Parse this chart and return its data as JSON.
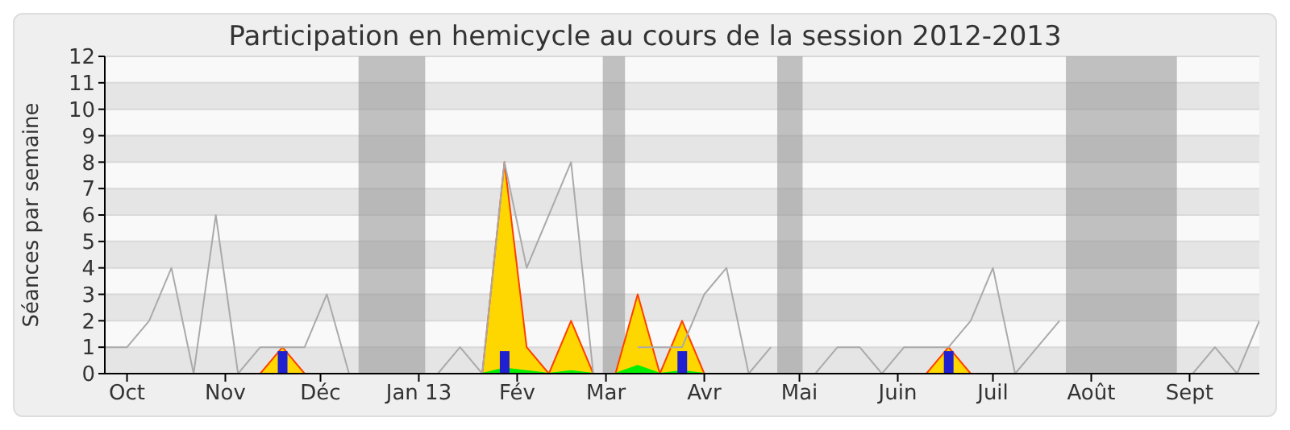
{
  "chart_data": {
    "type": "line",
    "title": "Participation en hemicycle au cours de la session 2012-2013",
    "ylabel": "Séances par semaine",
    "x": [
      "2012-09-24",
      "2012-10-01",
      "2012-10-08",
      "2012-10-15",
      "2012-10-22",
      "2012-10-29",
      "2012-11-05",
      "2012-11-12",
      "2012-11-19",
      "2012-11-26",
      "2012-12-03",
      "2012-12-10",
      "2012-12-17",
      "2012-12-24",
      "2012-12-31",
      "2013-01-07",
      "2013-01-14",
      "2013-01-21",
      "2013-01-28",
      "2013-02-04",
      "2013-02-11",
      "2013-02-18",
      "2013-02-25",
      "2013-03-04",
      "2013-03-11",
      "2013-03-18",
      "2013-03-25",
      "2013-04-01",
      "2013-04-08",
      "2013-04-15",
      "2013-04-22",
      "2013-04-29",
      "2013-05-06",
      "2013-05-13",
      "2013-05-20",
      "2013-05-27",
      "2013-06-03",
      "2013-06-10",
      "2013-06-17",
      "2013-06-24",
      "2013-07-01",
      "2013-07-08",
      "2013-07-15",
      "2013-07-22",
      "2013-07-29",
      "2013-08-05",
      "2013-08-12",
      "2013-08-19",
      "2013-08-26",
      "2013-09-02",
      "2013-09-09",
      "2013-09-16",
      "2013-09-23"
    ],
    "series": [
      {
        "color": "#aaaaaa",
        "values": [
          1,
          1,
          2,
          4,
          0,
          6,
          0,
          1,
          1,
          1,
          3,
          0,
          null,
          null,
          null,
          0,
          1,
          0,
          8,
          4,
          6,
          8,
          0,
          null,
          1,
          1,
          1,
          3,
          4,
          0,
          1,
          null,
          0,
          1,
          1,
          0,
          1,
          1,
          1,
          2,
          4,
          0,
          1,
          2,
          null,
          null,
          null,
          null,
          null,
          0,
          1,
          0,
          2
        ]
      },
      {
        "type": "area",
        "color": "#ffd700",
        "values": [
          0,
          0,
          0,
          0,
          0,
          0,
          0,
          0,
          1,
          0,
          0,
          0,
          0,
          0,
          0,
          0,
          0,
          0,
          8,
          1,
          0,
          2,
          0,
          0,
          3,
          0,
          2,
          0,
          0,
          0,
          0,
          0,
          0,
          0,
          0,
          0,
          0,
          0,
          1,
          0,
          0,
          0,
          0,
          0,
          0,
          0,
          0,
          0,
          0,
          0,
          0,
          0,
          0
        ]
      },
      {
        "type": "area",
        "color": "#00ee00",
        "values": [
          0,
          0,
          0,
          0,
          0,
          0,
          0,
          0,
          0,
          0,
          0,
          0,
          0,
          0,
          0,
          0,
          0,
          0,
          0.2,
          0.1,
          0,
          0.1,
          0,
          0,
          0.3,
          0,
          0.1,
          0,
          0,
          0,
          0,
          0,
          0,
          0,
          0,
          0,
          0,
          0,
          0,
          0,
          0,
          0,
          0,
          0,
          0,
          0,
          0,
          0,
          0,
          0,
          0,
          0,
          0
        ]
      },
      {
        "type": "bar",
        "color": "#2020d0",
        "values": [
          null,
          null,
          null,
          null,
          null,
          null,
          null,
          null,
          0.85,
          null,
          null,
          null,
          null,
          null,
          null,
          null,
          null,
          null,
          0.85,
          null,
          null,
          null,
          null,
          null,
          null,
          null,
          0.85,
          null,
          null,
          null,
          null,
          null,
          null,
          null,
          null,
          null,
          null,
          null,
          0.85,
          null,
          null,
          null,
          null,
          null,
          null,
          null,
          null,
          null,
          null,
          null,
          null,
          null,
          null
        ]
      }
    ],
    "xlim": [
      "2012-09-24",
      "2013-09-23"
    ],
    "xticks": [
      {
        "value": "2012-10-01",
        "label": "Oct"
      },
      {
        "value": "2012-11-01",
        "label": "Nov"
      },
      {
        "value": "2012-12-01",
        "label": "Déc"
      },
      {
        "value": "2013-01-01",
        "label": "Jan 13"
      },
      {
        "value": "2013-02-01",
        "label": "Fév"
      },
      {
        "value": "2013-03-01",
        "label": "Mar"
      },
      {
        "value": "2013-04-01",
        "label": "Avr"
      },
      {
        "value": "2013-05-01",
        "label": "Mai"
      },
      {
        "value": "2013-06-01",
        "label": "Juin"
      },
      {
        "value": "2013-07-01",
        "label": "Juil"
      },
      {
        "value": "2013-08-01",
        "label": "Août"
      },
      {
        "value": "2013-09-01",
        "label": "Sept"
      }
    ],
    "ylim": [
      0,
      12
    ],
    "yticks": [
      0,
      1,
      2,
      3,
      4,
      5,
      6,
      7,
      8,
      9,
      10,
      11,
      12
    ],
    "grid": "y",
    "bands": [
      {
        "axis": "x",
        "from": "2012-12-13",
        "to": "2013-01-03",
        "color": "#999999"
      },
      {
        "axis": "x",
        "from": "2013-02-28",
        "to": "2013-03-07",
        "color": "#999999"
      },
      {
        "axis": "x",
        "from": "2013-04-24",
        "to": "2013-05-02",
        "color": "#999999"
      },
      {
        "axis": "x",
        "from": "2013-07-24",
        "to": "2013-08-28",
        "color": "#999999"
      }
    ]
  }
}
